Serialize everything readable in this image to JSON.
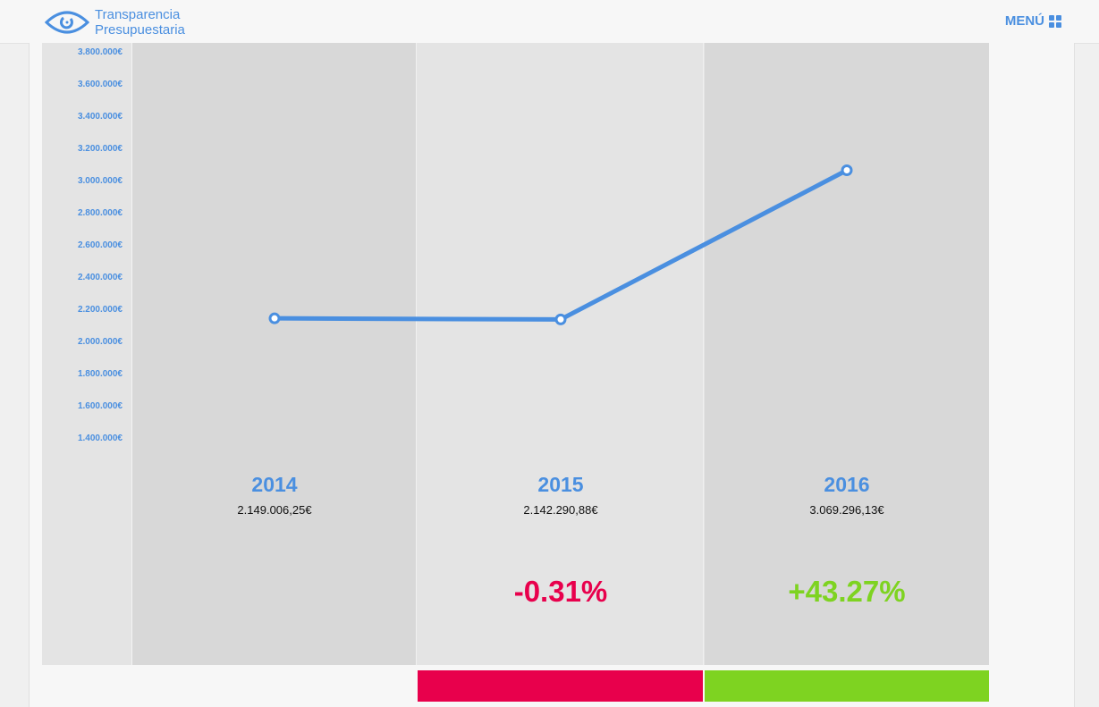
{
  "header": {
    "logo_line1": "Transparencia",
    "logo_line2": "Presupuestaria",
    "menu_label": "MENÚ"
  },
  "colors": {
    "accent": "#4a8fe0",
    "negative": "#e8004c",
    "positive": "#7ed321"
  },
  "yaxis": {
    "ticks": [
      "3.800.000€",
      "3.600.000€",
      "3.400.000€",
      "3.200.000€",
      "3.000.000€",
      "2.800.000€",
      "2.600.000€",
      "2.400.000€",
      "2.200.000€",
      "2.000.000€",
      "1.800.000€",
      "1.600.000€",
      "1.400.000€"
    ]
  },
  "chart_data": {
    "type": "line",
    "x": [
      "2014",
      "2015",
      "2016"
    ],
    "series": [
      {
        "values": [
          2149006.25,
          2142290.88,
          3069296.13
        ]
      }
    ],
    "ylim": [
      1400000,
      3800000
    ],
    "grid": false
  },
  "years": [
    {
      "year": "2014",
      "amount": "2.149.006,25€",
      "change": ""
    },
    {
      "year": "2015",
      "amount": "2.142.290,88€",
      "change": "-0.31%"
    },
    {
      "year": "2016",
      "amount": "3.069.296,13€",
      "change": "+43.27%"
    }
  ]
}
